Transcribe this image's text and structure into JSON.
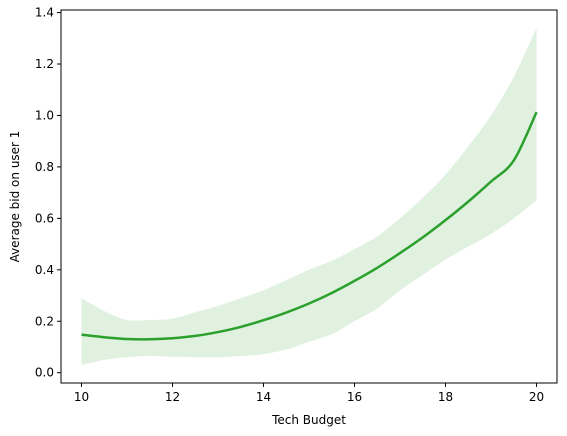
{
  "chart_data": {
    "type": "line",
    "title": "",
    "xlabel": "Tech Budget",
    "ylabel": "Average bid on user 1",
    "xlim": [
      9.55,
      20.45
    ],
    "ylim": [
      -0.04,
      1.41
    ],
    "x_ticks": [
      10,
      12,
      14,
      16,
      18,
      20
    ],
    "y_ticks": [
      0.0,
      0.2,
      0.4,
      0.6,
      0.8,
      1.0,
      1.2,
      1.4
    ],
    "grid": false,
    "legend": "none",
    "colors": {
      "line": "#2ca02c",
      "band": "#2ca02c",
      "band_opacity": 0.15
    },
    "series": [
      {
        "x": [
          10,
          10.5,
          11,
          11.5,
          12,
          12.5,
          13,
          13.5,
          14,
          14.5,
          15,
          15.5,
          16,
          16.5,
          17,
          17.5,
          18,
          18.5,
          19,
          19.5,
          20
        ],
        "y": [
          0.148,
          0.138,
          0.131,
          0.13,
          0.134,
          0.143,
          0.158,
          0.178,
          0.204,
          0.234,
          0.269,
          0.31,
          0.357,
          0.408,
          0.465,
          0.526,
          0.593,
          0.665,
          0.743,
          0.825,
          1.013
        ],
        "lower": [
          0.03,
          0.05,
          0.06,
          0.065,
          0.062,
          0.06,
          0.06,
          0.065,
          0.072,
          0.09,
          0.12,
          0.15,
          0.2,
          0.25,
          0.32,
          0.38,
          0.44,
          0.49,
          0.54,
          0.6,
          0.67
        ],
        "upper": [
          0.29,
          0.24,
          0.205,
          0.205,
          0.21,
          0.235,
          0.26,
          0.29,
          0.32,
          0.36,
          0.4,
          0.435,
          0.48,
          0.53,
          0.6,
          0.68,
          0.77,
          0.88,
          1.0,
          1.15,
          1.34
        ]
      }
    ]
  }
}
